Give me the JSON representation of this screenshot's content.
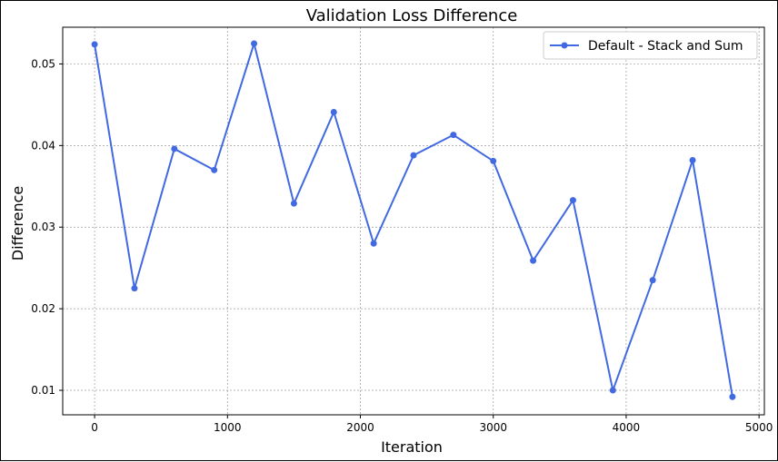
{
  "chart_data": {
    "type": "line",
    "title": "Validation Loss Difference",
    "xlabel": "Iteration",
    "ylabel": "Difference",
    "xlim": [
      -240,
      5040
    ],
    "ylim": [
      0.007,
      0.0545
    ],
    "xticks": [
      0,
      1000,
      2000,
      3000,
      4000,
      5000
    ],
    "xtick_labels": [
      "0",
      "1000",
      "2000",
      "3000",
      "4000",
      "5000"
    ],
    "yticks": [
      0.01,
      0.02,
      0.03,
      0.04,
      0.05
    ],
    "ytick_labels": [
      "0.01",
      "0.02",
      "0.03",
      "0.04",
      "0.05"
    ],
    "grid": true,
    "legend_position": "top-right",
    "series": [
      {
        "name": "Default - Stack and Sum",
        "color": "#4169e1",
        "x": [
          0,
          300,
          600,
          900,
          1200,
          1500,
          1800,
          2100,
          2400,
          2700,
          3000,
          3300,
          3600,
          3900,
          4200,
          4500,
          4800
        ],
        "y": [
          0.0524,
          0.0225,
          0.0396,
          0.037,
          0.0525,
          0.0329,
          0.0441,
          0.028,
          0.0388,
          0.0413,
          0.0381,
          0.0259,
          0.0333,
          0.01,
          0.0235,
          0.0382,
          0.0092
        ]
      }
    ]
  }
}
